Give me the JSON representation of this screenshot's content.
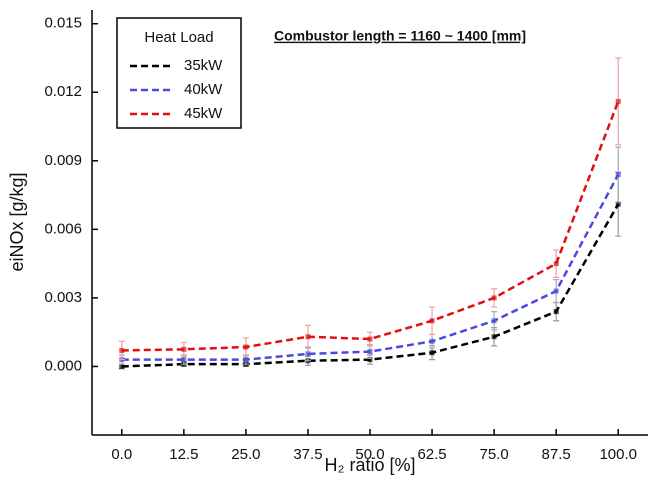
{
  "chart_data": {
    "type": "line",
    "annotation": "Combustor length = 1160 ~ 1400 [mm]",
    "x_label": "H₂ ratio [%]",
    "y_label": "eiNOx [g/kg]",
    "legend_title": "Heat Load",
    "legend_position": "upper left",
    "x": [
      0,
      12.5,
      25,
      37.5,
      50,
      62.5,
      75,
      87.5,
      100
    ],
    "series": [
      {
        "name": "35kW",
        "color": "#000000",
        "error_color": "#999999",
        "values": [
          0.0,
          0.0001,
          0.0001,
          0.00025,
          0.0003,
          0.0006,
          0.0013,
          0.0024,
          0.0071
        ],
        "errors": [
          0.0001,
          0.0001,
          0.0001,
          0.0002,
          0.0002,
          0.0003,
          0.0004,
          0.0004,
          0.0014
        ]
      },
      {
        "name": "40kW",
        "color": "#4a4ae0",
        "error_color": "#aaaaaa",
        "values": [
          0.0003,
          0.0003,
          0.0003,
          0.00055,
          0.00065,
          0.0011,
          0.002,
          0.0033,
          0.0084
        ],
        "errors": [
          0.0002,
          0.0002,
          0.0002,
          0.0003,
          0.0003,
          0.0003,
          0.0004,
          0.0005,
          0.0012
        ]
      },
      {
        "name": "45kW",
        "color": "#e01010",
        "error_color": "#f0a0a0",
        "values": [
          0.0007,
          0.00075,
          0.00085,
          0.0013,
          0.0012,
          0.002,
          0.003,
          0.0045,
          0.0116
        ],
        "errors": [
          0.0004,
          0.0003,
          0.0004,
          0.0005,
          0.0003,
          0.0006,
          0.0004,
          0.0006,
          0.0019
        ]
      }
    ],
    "xlim": [
      -6,
      106
    ],
    "ylim": [
      -0.003,
      0.0156
    ],
    "xticks": [
      {
        "value": 0,
        "label": "0.0"
      },
      {
        "value": 12.5,
        "label": "12.5"
      },
      {
        "value": 25,
        "label": "25.0"
      },
      {
        "value": 37.5,
        "label": "37.5"
      },
      {
        "value": 50,
        "label": "50.0"
      },
      {
        "value": 62.5,
        "label": "62.5"
      },
      {
        "value": 75,
        "label": "75.0"
      },
      {
        "value": 87.5,
        "label": "87.5"
      },
      {
        "value": 100,
        "label": "100.0"
      }
    ],
    "yticks": [
      {
        "value": 0,
        "label": "0.000"
      },
      {
        "value": 0.003,
        "label": "0.003"
      },
      {
        "value": 0.006,
        "label": "0.006"
      },
      {
        "value": 0.009,
        "label": "0.009"
      },
      {
        "value": 0.012,
        "label": "0.012"
      },
      {
        "value": 0.015,
        "label": "0.015"
      }
    ]
  }
}
